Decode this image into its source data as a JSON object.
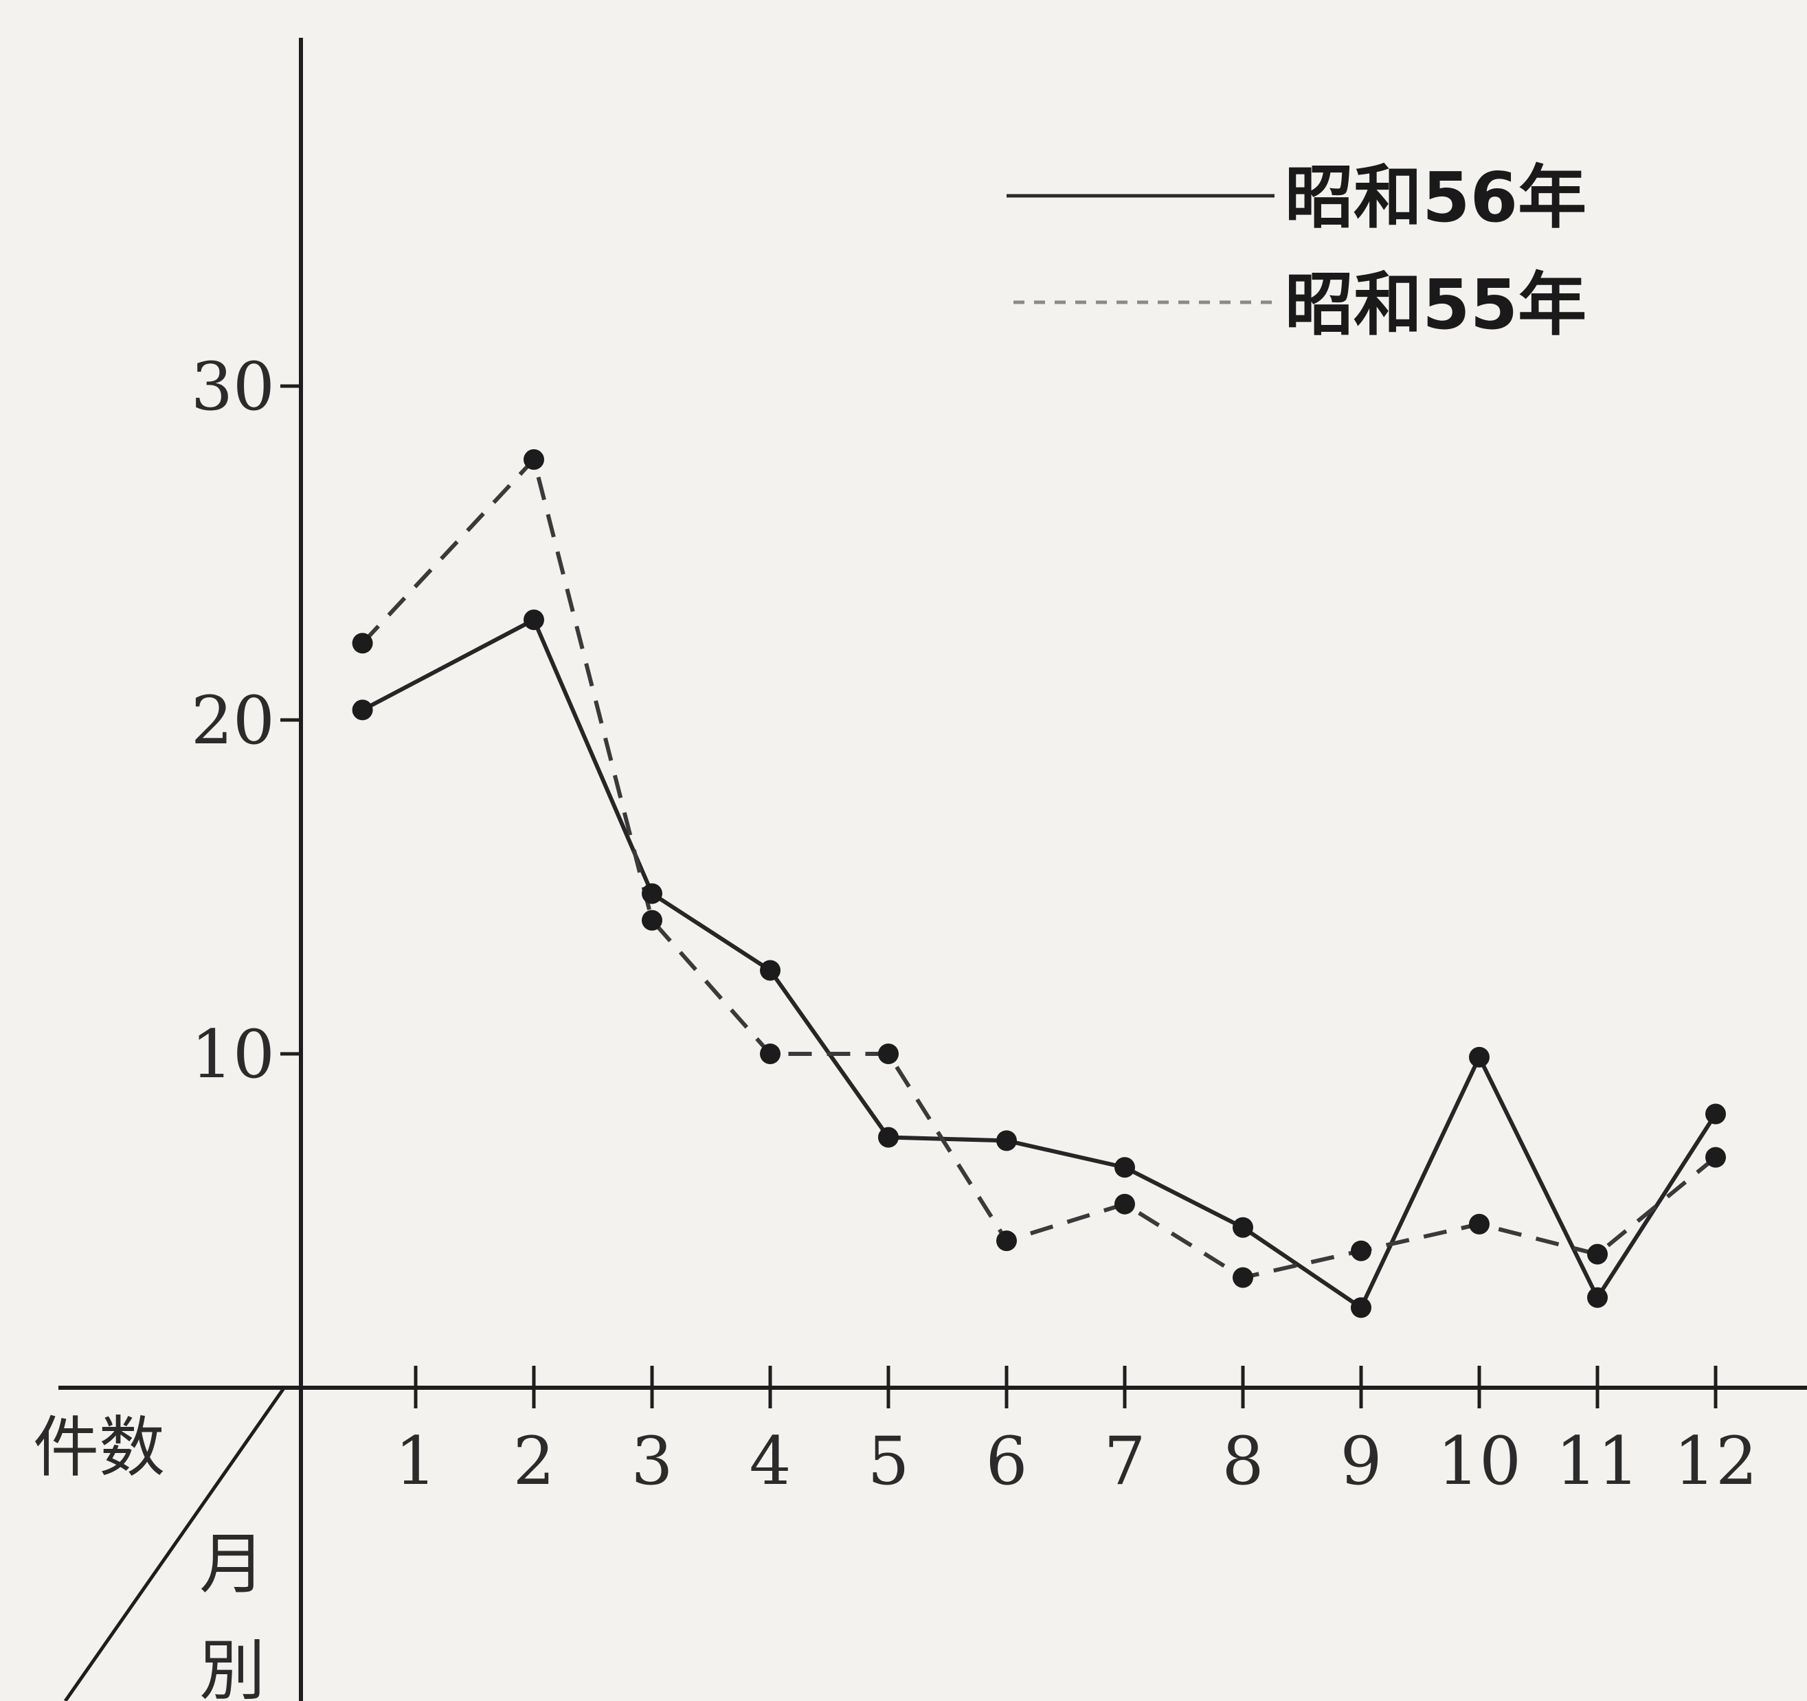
{
  "chart_data": {
    "type": "line",
    "title": "",
    "x": [
      "1",
      "2",
      "3",
      "4",
      "5",
      "6",
      "7",
      "8",
      "9",
      "10",
      "11",
      "12"
    ],
    "xlim": [
      0,
      12.7
    ],
    "ylim": [
      0,
      40
    ],
    "yticks": [
      10,
      20,
      30
    ],
    "grid": false,
    "legend_position": "top-right",
    "corner_labels": {
      "y_label": "件数",
      "x_label_1": "月",
      "x_label_2": "別"
    },
    "series": [
      {
        "name": "昭和56年",
        "style": "solid",
        "x": [
          0.55,
          2,
          3,
          4,
          5,
          6,
          7,
          8,
          9,
          10,
          11,
          12
        ],
        "values": [
          20.3,
          23.0,
          14.8,
          12.5,
          7.5,
          7.4,
          6.6,
          4.8,
          2.4,
          9.9,
          2.7,
          8.2
        ]
      },
      {
        "name": "昭和55年",
        "style": "dashed",
        "x": [
          0.55,
          2,
          3,
          4,
          5,
          6,
          7,
          8,
          9,
          10,
          11,
          12
        ],
        "values": [
          22.3,
          27.8,
          14.0,
          10.0,
          10.0,
          4.4,
          5.5,
          3.3,
          4.1,
          4.9,
          4.0,
          6.9
        ]
      }
    ]
  }
}
